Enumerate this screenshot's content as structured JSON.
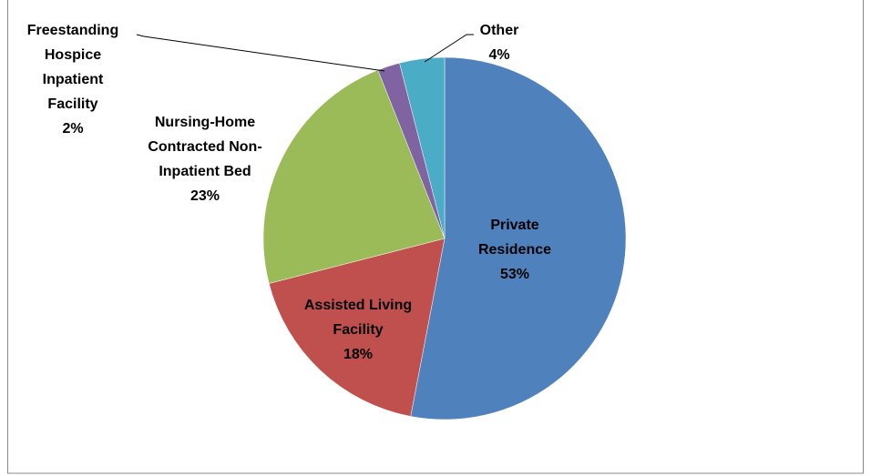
{
  "chart_data": {
    "type": "pie",
    "categories": [
      "Private Residence",
      "Assisted Living Facility",
      "Nursing-Home Contracted Non-Inpatient Bed",
      "Freestanding Hospice Inpatient Facility",
      "Other"
    ],
    "values": [
      53,
      18,
      23,
      2,
      4
    ],
    "value_labels": [
      "53%",
      "18%",
      "23%",
      "2%",
      "4%"
    ],
    "colors": [
      "#4f81bd",
      "#c0504d",
      "#9bbb59",
      "#8064a2",
      "#4bacc6"
    ]
  }
}
